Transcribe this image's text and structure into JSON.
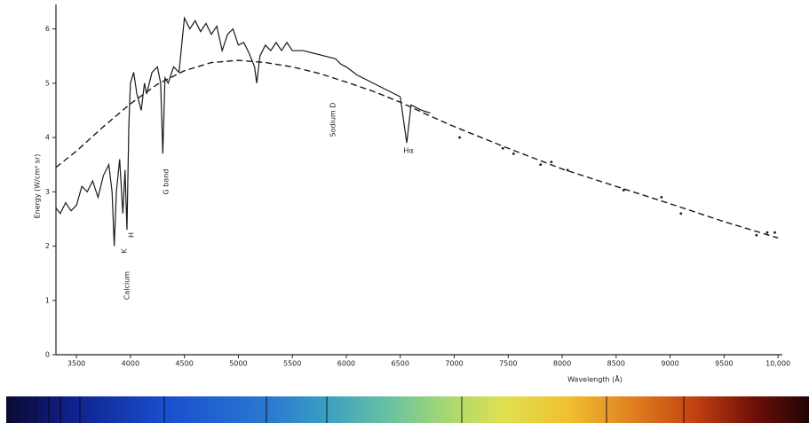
{
  "chart_data": {
    "type": "line",
    "xlabel": "Wavelength (Å)",
    "ylabel": "Energy (W/cm² sr)",
    "xlim": [
      3310,
      10040
    ],
    "ylim": [
      0,
      6.45
    ],
    "xticks": [
      3500,
      4000,
      4500,
      5000,
      5500,
      6000,
      6500,
      7000,
      7500,
      8000,
      8500,
      9000,
      9500,
      {
        "value": 10000,
        "label": "10,000"
      }
    ],
    "yticks": [
      0,
      1,
      2,
      3,
      4,
      5,
      6
    ],
    "grid": false,
    "series": [
      {
        "type": "line",
        "color": "#1a1a1a",
        "dash": false,
        "x": [
          3310,
          3350,
          3400,
          3450,
          3500,
          3550,
          3600,
          3650,
          3700,
          3750,
          3800,
          3830,
          3850,
          3870,
          3900,
          3930,
          3950,
          3968,
          3985,
          4000,
          4030,
          4060,
          4100,
          4130,
          4150,
          4200,
          4250,
          4280,
          4300,
          4320,
          4350,
          4400,
          4450,
          4480,
          4500,
          4550,
          4600,
          4650,
          4700,
          4750,
          4800,
          4850,
          4900,
          4950,
          5000,
          5050,
          5100,
          5150,
          5170,
          5200,
          5250,
          5300,
          5350,
          5400,
          5450,
          5500,
          5600,
          5700,
          5800,
          5900,
          5950,
          6000,
          6100,
          6200,
          6300,
          6400,
          6500,
          6560,
          6600,
          6700,
          6780
        ],
        "values": [
          2.7,
          2.6,
          2.8,
          2.65,
          2.75,
          3.1,
          3.0,
          3.2,
          2.9,
          3.3,
          3.5,
          3.0,
          2.0,
          3.0,
          3.6,
          2.6,
          3.4,
          2.3,
          4.2,
          5.0,
          5.2,
          4.8,
          4.5,
          5.0,
          4.8,
          5.2,
          5.3,
          5.0,
          3.7,
          5.1,
          5.0,
          5.3,
          5.2,
          5.8,
          6.2,
          6.0,
          6.15,
          5.95,
          6.1,
          5.9,
          6.05,
          5.6,
          5.9,
          6.0,
          5.7,
          5.75,
          5.55,
          5.3,
          5.0,
          5.5,
          5.7,
          5.6,
          5.75,
          5.6,
          5.75,
          5.6,
          5.6,
          5.55,
          5.5,
          5.45,
          5.35,
          5.3,
          5.15,
          5.05,
          4.95,
          4.85,
          4.75,
          3.9,
          4.6,
          4.5,
          4.45
        ]
      },
      {
        "type": "line",
        "color": "#1a1a1a",
        "dash": true,
        "x": [
          3310,
          3500,
          3750,
          4000,
          4250,
          4500,
          4750,
          5000,
          5250,
          5500,
          5750,
          6000,
          6250,
          6500,
          6750,
          7000,
          7500,
          8000,
          8500,
          9000,
          9500,
          10000
        ],
        "values": [
          3.45,
          3.75,
          4.2,
          4.62,
          4.98,
          5.23,
          5.38,
          5.42,
          5.38,
          5.3,
          5.18,
          5.02,
          4.85,
          4.65,
          4.42,
          4.2,
          3.8,
          3.42,
          3.1,
          2.78,
          2.45,
          2.15
        ]
      },
      {
        "type": "scatter",
        "color": "#1a1a1a",
        "x": [
          7050,
          7450,
          7550,
          7800,
          7900,
          8050,
          8570,
          8920,
          9100,
          9800,
          9900,
          9970
        ],
        "values": [
          4.0,
          3.8,
          3.7,
          3.5,
          3.55,
          3.4,
          3.03,
          2.9,
          2.6,
          2.2,
          2.25,
          2.25
        ]
      }
    ],
    "annotations": [
      "Calcium",
      "K",
      "H",
      "G band",
      "Sodium D",
      "Hα"
    ]
  }
}
